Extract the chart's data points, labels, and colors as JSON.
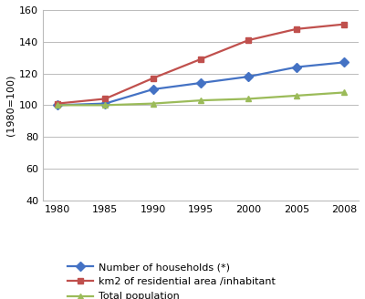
{
  "years": [
    1980,
    1985,
    1990,
    1995,
    2000,
    2005,
    2008
  ],
  "year_labels": [
    "1980",
    "1985",
    "1990",
    "1995",
    "2000",
    "2005",
    "2008"
  ],
  "x_positions": [
    0,
    1,
    2,
    3,
    4,
    5,
    6
  ],
  "households": [
    100,
    101,
    110,
    114,
    118,
    124,
    127
  ],
  "residential": [
    101,
    104,
    117,
    129,
    141,
    148,
    151
  ],
  "population": [
    100,
    100,
    101,
    103,
    104,
    106,
    108
  ],
  "line_colors": {
    "households": "#4472C4",
    "residential": "#C0504D",
    "population": "#9BBB59"
  },
  "markers": {
    "households": "D",
    "residential": "s",
    "population": "^"
  },
  "legend_labels": {
    "households": "Number of households (*)",
    "residential": "km2 of residential area /inhabitant",
    "population": "Total population"
  },
  "ylabel": "(1980=100)",
  "ylim": [
    40,
    160
  ],
  "yticks": [
    40,
    60,
    80,
    100,
    120,
    140,
    160
  ],
  "grid_color": "#BBBBBB",
  "background_color": "#FFFFFF",
  "axis_fontsize": 8,
  "legend_fontsize": 8,
  "marker_size": 5,
  "line_width": 1.6
}
